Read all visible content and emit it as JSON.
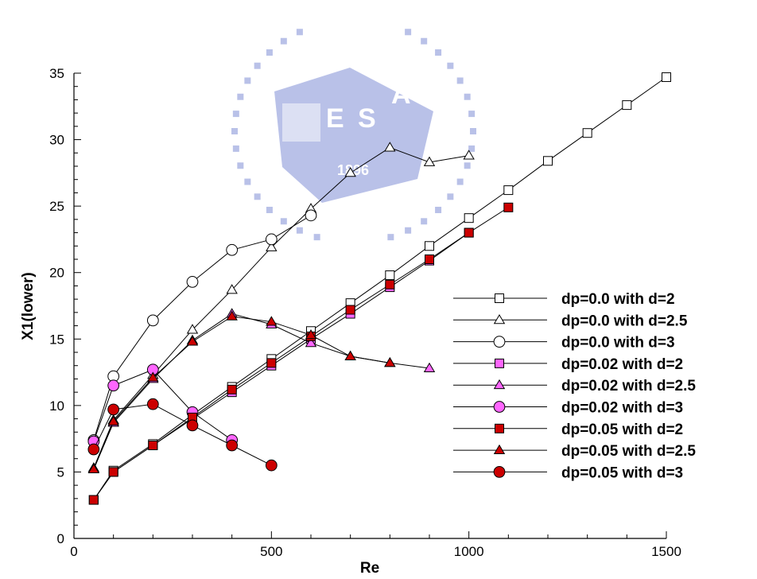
{
  "chart_data": {
    "type": "line",
    "title": "",
    "xlabel": "Re",
    "ylabel": "X1(lower)",
    "xlim": [
      0,
      1500
    ],
    "ylim": [
      0,
      35
    ],
    "xticks": [
      0,
      500,
      1000,
      1500
    ],
    "yticks": [
      0,
      5,
      10,
      15,
      20,
      25,
      30,
      35
    ],
    "grid": false,
    "legend_position": "right",
    "series": [
      {
        "name": "dp=0.0 with d=2",
        "marker": "square",
        "filled": false,
        "color": "#000000",
        "x": [
          50,
          100,
          200,
          300,
          400,
          500,
          600,
          700,
          800,
          900,
          1000,
          1100,
          1200,
          1300,
          1400,
          1500
        ],
        "y": [
          2.9,
          5.1,
          7.1,
          9.3,
          11.4,
          13.5,
          15.6,
          17.7,
          19.8,
          22.0,
          24.1,
          26.2,
          28.4,
          30.5,
          32.6,
          34.7
        ]
      },
      {
        "name": "dp=0.0 with d=2.5",
        "marker": "triangle",
        "filled": false,
        "color": "#000000",
        "x": [
          50,
          100,
          200,
          300,
          400,
          500,
          600,
          700,
          800,
          900,
          1000
        ],
        "y": [
          5.3,
          8.9,
          12.3,
          15.7,
          18.7,
          21.9,
          24.8,
          27.5,
          29.4,
          28.3,
          28.8
        ]
      },
      {
        "name": "dp=0.0 with d=3",
        "marker": "circle",
        "filled": false,
        "color": "#000000",
        "x": [
          50,
          100,
          200,
          300,
          400,
          500,
          600
        ],
        "y": [
          7.4,
          12.2,
          16.4,
          19.3,
          21.7,
          22.5,
          24.3
        ]
      },
      {
        "name": "dp=0.02 with d=2",
        "marker": "square",
        "filled": true,
        "color": "#ff66ff",
        "x": [
          50,
          100,
          200,
          300,
          400,
          500,
          600,
          700,
          800,
          900,
          1000
        ],
        "y": [
          2.9,
          5.0,
          7.0,
          9.0,
          11.0,
          13.0,
          15.0,
          16.9,
          18.9,
          20.9,
          23.0
        ]
      },
      {
        "name": "dp=0.02 with d=2.5",
        "marker": "triangle",
        "filled": true,
        "color": "#ff66ff",
        "x": [
          50,
          100,
          200,
          300,
          400,
          500,
          600,
          700,
          800,
          900
        ],
        "y": [
          5.2,
          8.7,
          12.0,
          14.9,
          16.9,
          16.1,
          14.7,
          13.7,
          13.2,
          12.8
        ]
      },
      {
        "name": "dp=0.02 with d=3",
        "marker": "circle",
        "filled": true,
        "color": "#ff66ff",
        "x": [
          50,
          100,
          200,
          300,
          400
        ],
        "y": [
          7.3,
          11.5,
          12.7,
          9.5,
          7.4
        ]
      },
      {
        "name": "dp=0.05 with d=2",
        "marker": "square",
        "filled": true,
        "color": "#cc0000",
        "x": [
          50,
          100,
          200,
          300,
          400,
          500,
          600,
          700,
          800,
          900,
          1000,
          1100
        ],
        "y": [
          2.9,
          5.0,
          7.0,
          9.1,
          11.2,
          13.2,
          15.2,
          17.2,
          19.1,
          21.0,
          23.0,
          24.9
        ]
      },
      {
        "name": "dp=0.05 with d=2.5",
        "marker": "triangle",
        "filled": true,
        "color": "#cc0000",
        "x": [
          50,
          100,
          200,
          300,
          400,
          500,
          600,
          700,
          800
        ],
        "y": [
          5.2,
          8.8,
          12.1,
          14.8,
          16.7,
          16.3,
          15.3,
          13.7,
          13.2
        ]
      },
      {
        "name": "dp=0.05 with d=3",
        "marker": "circle",
        "filled": true,
        "color": "#cc0000",
        "x": [
          50,
          100,
          200,
          300,
          400,
          500
        ],
        "y": [
          6.7,
          9.7,
          10.1,
          8.5,
          7.0,
          5.5
        ]
      }
    ]
  },
  "watermark": {
    "letters": [
      "E",
      "S",
      "A"
    ],
    "year": "1896",
    "color": "#4a5fc4"
  }
}
